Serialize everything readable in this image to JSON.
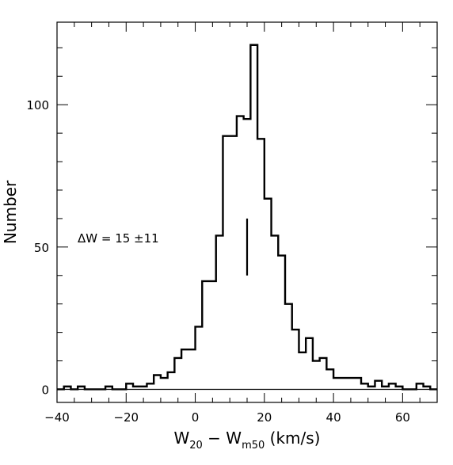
{
  "chart_data": {
    "type": "histogram",
    "xlabel": {
      "base": "W",
      "sub1": "20",
      "mid": " − W",
      "sub2": "m50",
      "unit": " (km/s)"
    },
    "ylabel": "Number",
    "xlim": [
      -40,
      70
    ],
    "ylim": [
      -4.6,
      129
    ],
    "bin_width": 2,
    "xticks": [
      -40,
      -20,
      0,
      20,
      40,
      60
    ],
    "xtick_labels": [
      "−40",
      "−20",
      "0",
      "20",
      "40",
      "60"
    ],
    "yticks": [
      0,
      50,
      100
    ],
    "ytick_labels": [
      "0",
      "50",
      "100"
    ],
    "bin_edges": [
      -40,
      -38,
      -36,
      -34,
      -32,
      -30,
      -28,
      -26,
      -24,
      -22,
      -20,
      -18,
      -16,
      -14,
      -12,
      -10,
      -8,
      -6,
      -4,
      -2,
      0,
      2,
      4,
      6,
      8,
      10,
      12,
      14,
      16,
      18,
      20,
      22,
      24,
      26,
      28,
      30,
      32,
      34,
      36,
      38,
      40,
      42,
      44,
      46,
      48,
      50,
      52,
      54,
      56,
      58,
      60,
      62,
      64,
      66,
      68,
      70
    ],
    "counts": [
      0,
      1,
      0,
      1,
      0,
      0,
      0,
      1,
      0,
      0,
      2,
      1,
      1,
      2,
      5,
      4,
      6,
      11,
      14,
      14,
      22,
      38,
      38,
      54,
      89,
      89,
      96,
      95,
      121,
      88,
      67,
      54,
      47,
      30,
      21,
      13,
      18,
      10,
      11,
      7,
      4,
      4,
      4,
      4,
      2,
      1,
      3,
      1,
      2,
      1,
      0,
      0,
      2,
      1,
      0
    ],
    "marker": {
      "x": 15,
      "y_range": [
        40,
        60
      ]
    },
    "annotation": "ΔW = 15 ±11"
  }
}
